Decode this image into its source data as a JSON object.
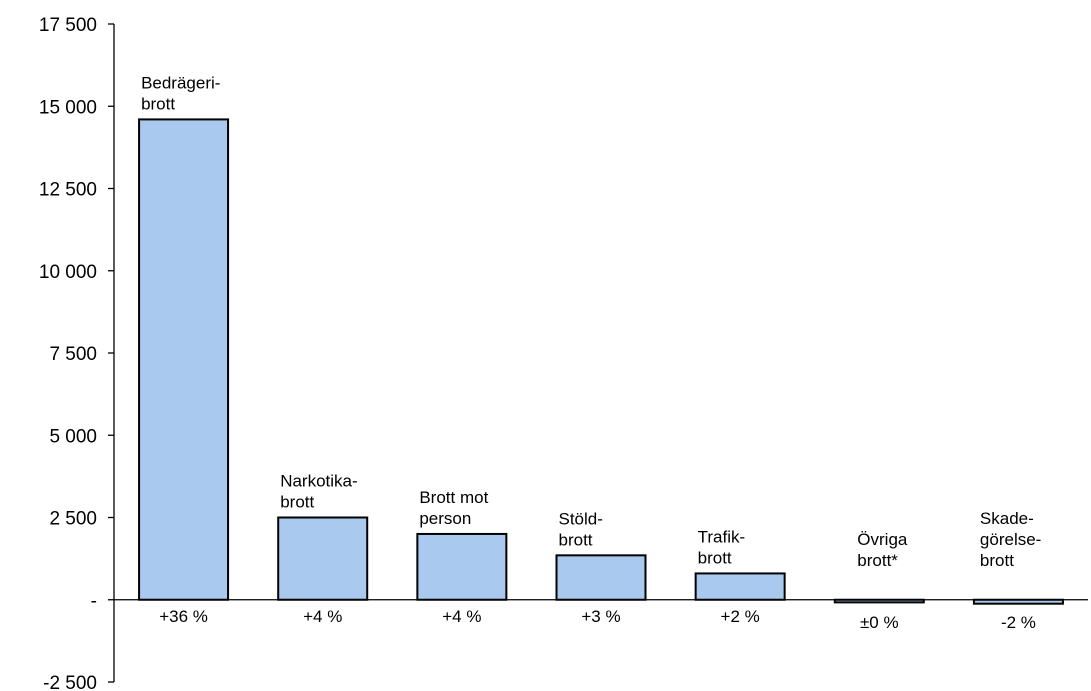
{
  "chart_data": {
    "type": "bar",
    "title": "",
    "xlabel": "",
    "ylabel": "",
    "ylim": [
      -2500,
      17500
    ],
    "yticks": [
      17500,
      15000,
      12500,
      10000,
      7500,
      5000,
      2500,
      0,
      -2500
    ],
    "ytick_labels": [
      "17 500",
      "15 000",
      "12 500",
      "10 000",
      "7 500",
      "5 000",
      "2 500",
      "-",
      "-2 500"
    ],
    "categories": [
      [
        "Bedrägeri-",
        "brott"
      ],
      [
        "Narkotika-",
        "brott"
      ],
      [
        "Brott mot",
        "person"
      ],
      [
        "Stöld-",
        "brott"
      ],
      [
        "Trafik-",
        "brott"
      ],
      [
        "Övriga",
        "brott*"
      ],
      [
        "Skade-",
        "görelse-",
        "brott"
      ]
    ],
    "values": [
      14600,
      2500,
      2000,
      1350,
      800,
      -80,
      -120
    ],
    "change_labels": [
      "+36 %",
      "+4 %",
      "+4 %",
      "+3 %",
      "+2 %",
      "±0 %",
      "-2 %"
    ],
    "bar_color": "#a9c9ee",
    "border_color": "#000000",
    "grid": false,
    "legend": "none"
  }
}
